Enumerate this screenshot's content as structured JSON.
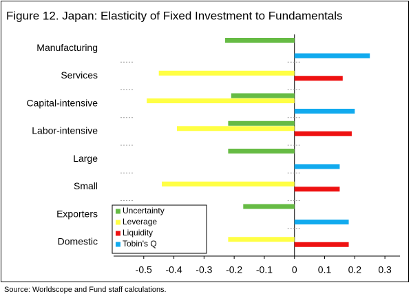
{
  "chart_data": {
    "type": "hbar",
    "title": "Figure 12. Japan: Elasticity of Fixed Investment to Fundamentals",
    "source": "Source: Worldscope and Fund staff calculations.",
    "categories": [
      "Manufacturing",
      "Services",
      "Capital-intensive",
      "Labor-intensive",
      "Large",
      "Small",
      "Exporters",
      "Domestic"
    ],
    "series": [
      {
        "name": "Uncertainty",
        "color": "#66bb44",
        "values": [
          -0.23,
          null,
          -0.21,
          -0.22,
          -0.22,
          null,
          -0.17,
          null
        ]
      },
      {
        "name": "Leverage",
        "color": "#ffff44",
        "values": [
          null,
          -0.45,
          -0.49,
          -0.39,
          null,
          -0.44,
          null,
          -0.22
        ]
      },
      {
        "name": "Liquidity",
        "color": "#ee1111",
        "values": [
          null,
          0.16,
          null,
          0.19,
          null,
          0.15,
          null,
          0.18
        ]
      },
      {
        "name": "Tobin's Q",
        "color": "#11aaee",
        "values": [
          0.25,
          null,
          0.2,
          null,
          0.15,
          null,
          0.18,
          null
        ]
      }
    ],
    "xlim": [
      -0.6,
      0.35
    ],
    "xticks": [
      -0.5,
      -0.4,
      -0.3,
      -0.2,
      -0.1,
      0,
      0.1,
      0.2,
      0.3
    ]
  }
}
